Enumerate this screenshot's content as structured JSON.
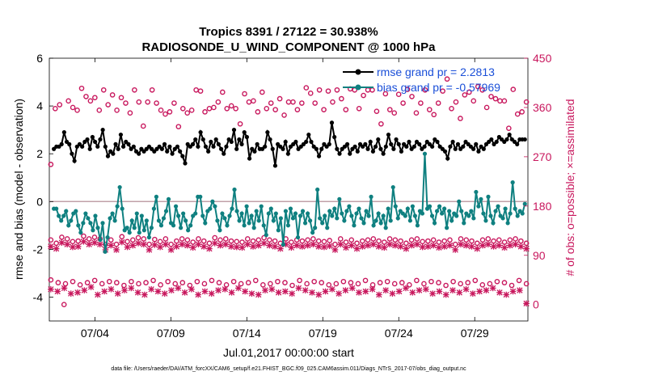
{
  "chart_data": {
    "type": "line",
    "title_line1": "Tropics 8391 / 27122 = 30.938%",
    "title_line2": "RADIOSONDE_U_WIND_COMPONENT @ 1000 hPa",
    "xlabel": "Jul.01,2017 00:00:00 start",
    "ylabel_left": "rmse and bias (model - observation)",
    "ylabel_right": "# of obs: o=possible; ×=assimilated",
    "x_ticks": [
      "07/04",
      "07/09",
      "07/14",
      "07/19",
      "07/24",
      "07/29"
    ],
    "x_tick_days": [
      3,
      8,
      13,
      18,
      23,
      28
    ],
    "x_range_days": [
      0,
      31.5
    ],
    "y_left_ticks": [
      "-4",
      "-2",
      "0",
      "2",
      "4",
      "6"
    ],
    "y_left_range": [
      -5,
      6
    ],
    "y_right_ticks": [
      "0",
      "90",
      "180",
      "270",
      "360",
      "450"
    ],
    "y_right_range": [
      -30,
      450
    ],
    "zero_line": 0,
    "footnote": "data file: /Users/raeder/DAI/ATM_forcXX/CAM6_setup/f.e21.FHIST_BGC.f09_025.CAM6assim.011/Diags_NTrS_2017-07/obs_diag_output.nc",
    "colors": {
      "rmse": "#000000",
      "bias": "#0f8080",
      "obs": "#c8175d",
      "zero": "#c0a0a8",
      "legend_text": "#1a4fd8"
    },
    "legend": [
      {
        "name": "rmse grand pr = 2.2813",
        "series": "rmse"
      },
      {
        "name": "bias grand pr = -0.57969",
        "series": "bias"
      }
    ],
    "series": [
      {
        "name": "rmse",
        "axis": "left",
        "values": [
          2.2,
          2.3,
          2.3,
          2.4,
          2.9,
          2.5,
          2.4,
          2.0,
          1.7,
          2.3,
          2.4,
          2.3,
          2.5,
          2.6,
          2.2,
          2.7,
          2.5,
          2.3,
          2.6,
          3.0,
          2.3,
          1.9,
          2.1,
          2.0,
          2.4,
          2.2,
          2.8,
          2.3,
          2.5,
          2.4,
          2.2,
          2.3,
          2.1,
          2.0,
          2.2,
          2.1,
          2.2,
          2.3,
          2.2,
          2.1,
          2.2,
          2.3,
          2.2,
          2.4,
          2.1,
          2.3,
          2.0,
          2.2,
          2.3,
          2.1,
          1.9,
          1.6,
          2.4,
          2.3,
          2.4,
          2.6,
          2.3,
          2.9,
          2.6,
          2.3,
          2.1,
          2.5,
          2.3,
          2.6,
          2.4,
          2.2,
          2.0,
          2.3,
          2.6,
          2.5,
          3.0,
          2.2,
          2.6,
          2.4,
          2.9,
          2.7,
          1.8,
          2.2,
          2.1,
          2.4,
          2.2,
          2.2,
          2.3,
          2.9,
          2.6,
          2.2,
          1.5,
          2.4,
          2.3,
          2.2,
          2.5,
          2.0,
          2.3,
          2.4,
          2.5,
          2.2,
          2.3,
          2.4,
          2.5,
          2.8,
          2.5,
          2.3,
          2.2,
          1.9,
          2.2,
          2.4,
          2.3,
          2.4,
          3.3,
          2.7,
          2.2,
          2.0,
          2.2,
          2.3,
          2.4,
          2.0,
          2.2,
          2.3,
          2.1,
          2.4,
          2.3,
          2.4,
          2.2,
          2.5,
          2.1,
          2.3,
          2.6,
          2.2,
          2.0,
          2.3,
          2.8,
          2.4,
          2.2,
          2.6,
          2.4,
          2.1,
          2.4,
          2.3,
          2.5,
          2.2,
          2.3,
          2.5,
          2.4,
          2.2,
          2.3,
          2.5,
          2.4,
          2.3,
          2.6,
          2.5,
          2.3,
          2.2,
          2.1,
          1.8,
          2.3,
          2.5,
          2.2,
          2.4,
          2.2,
          2.3,
          2.5,
          2.4,
          2.3,
          2.2,
          2.4,
          2.1,
          2.3,
          2.2,
          2.4,
          2.5,
          2.6,
          2.4,
          2.5,
          2.7,
          2.6,
          2.5,
          2.6,
          2.8,
          2.6,
          2.5,
          2.4,
          2.6,
          2.6,
          2.6
        ]
      },
      {
        "name": "bias",
        "axis": "left",
        "values": [
          -0.3,
          -0.3,
          -0.6,
          -0.8,
          -0.6,
          -0.4,
          -1.0,
          -0.8,
          -0.5,
          -0.4,
          -1.0,
          -1.3,
          -0.9,
          -0.5,
          -0.7,
          -0.9,
          -1.2,
          -0.6,
          -1.1,
          -1.6,
          -0.9,
          -2.1,
          -1.5,
          -0.7,
          -0.5,
          -0.8,
          -0.2,
          0.6,
          -0.3,
          -1.2,
          -1.1,
          -1.3,
          -0.8,
          -1.1,
          -0.5,
          -1.3,
          -0.6,
          -1.2,
          -0.8,
          -1.5,
          -1.1,
          -0.3,
          0.2,
          -0.8,
          -1.0,
          -0.7,
          -0.4,
          0.1,
          -0.9,
          -1.0,
          -0.2,
          -0.6,
          -1.1,
          -0.5,
          -0.8,
          -1.2,
          -1.0,
          -0.6,
          -0.5,
          0.2,
          0.2,
          -0.6,
          -0.9,
          -0.4,
          -0.3,
          0.0,
          -0.2,
          -0.8,
          -1.2,
          -0.5,
          -0.7,
          -1.0,
          -0.6,
          -0.3,
          0.5,
          -0.4,
          -0.8,
          -0.5,
          -1.0,
          -0.2,
          -0.9,
          -0.6,
          -1.1,
          -0.4,
          -0.8,
          -0.2,
          -1.0,
          -1.4,
          -0.5,
          -0.3,
          -0.8,
          -0.5,
          -1.2,
          -0.7,
          -1.8,
          -0.4,
          -1.0,
          -0.3,
          -0.7,
          -0.5,
          -1.5,
          -0.6,
          -0.4,
          -0.9,
          -0.5,
          -0.8,
          -1.3,
          -1.1,
          0.5,
          -0.7,
          -0.9,
          -0.6,
          -1.1,
          -0.4,
          -0.6,
          -0.3,
          -0.7,
          0.1,
          -0.5,
          -0.8,
          -0.4,
          -0.2,
          -0.6,
          -1.0,
          -0.5,
          -0.3,
          -0.7,
          -0.9,
          -0.4,
          -0.6,
          0.2,
          -1.0,
          -0.8,
          -0.5,
          -0.9,
          -0.6,
          -1.1,
          -0.3,
          -0.8,
          0.6,
          -0.2,
          -0.7,
          -0.4,
          -0.5,
          -0.6,
          -0.3,
          -0.8,
          -0.2,
          -0.6,
          -1.0,
          -0.4,
          -0.5,
          2.0,
          -0.3,
          -0.2,
          -0.6,
          -0.9,
          -0.4,
          -0.2,
          -0.5,
          -0.3,
          -1.1,
          -0.4,
          -0.8,
          -0.5,
          -0.6,
          0.0,
          -0.4,
          -0.9,
          -0.5,
          -0.6,
          -0.4,
          -0.7,
          0.4,
          -0.2,
          0.1,
          -0.5,
          -0.8,
          0.2,
          -0.6,
          -0.9,
          -0.4,
          -0.2,
          -0.6,
          -0.7,
          -0.3,
          -0.9,
          -0.5,
          0.8,
          -0.3,
          -0.6,
          -0.4,
          -0.5,
          -0.1
        ]
      },
      {
        "name": "obs possible (upper)",
        "axis": "right",
        "marker": "o",
        "values": [
          256,
          358,
          365,
          0,
          372,
          360,
          355,
          395,
          380,
          372,
          378,
          355,
          392,
          365,
          383,
          355,
          378,
          368,
          350,
          392,
          370,
          326,
          370,
          392,
          368,
          355,
          348,
          352,
          368,
          325,
          358,
          350,
          355,
          392,
          390,
          352,
          358,
          360,
          370,
          388,
          358,
          363,
          358,
          330,
          385,
          370,
          372,
          352,
          388,
          358,
          368,
          356,
          376,
          346,
          370,
          370,
          356,
          368,
          396,
          386,
          368,
          392,
          356,
          390,
          370,
          392,
          376,
          356,
          394,
          392,
          358,
          382,
          392,
          392,
          353,
          330,
          385,
          356,
          350,
          384,
          368,
          393,
          380,
          350,
          368,
          392,
          356,
          347,
          368,
          390,
          412,
          358,
          370,
          340,
          383,
          388,
          372,
          398,
          392,
          360,
          380,
          376,
          372,
          372,
          322,
          393,
          348,
          352,
          370
        ]
      },
      {
        "name": "obs possible (middle)",
        "axis": "right",
        "marker": "o",
        "values": [
          118,
          112,
          123,
          120,
          115,
          116,
          125,
          120,
          123,
          120,
          110,
          118,
          110,
          124,
          115,
          118,
          122,
          120,
          110,
          119,
          115,
          120,
          110,
          116,
          120,
          118,
          114,
          120,
          116,
          112,
          122,
          118,
          120,
          116,
          115,
          114,
          120,
          116,
          118,
          122,
          118,
          116,
          112,
          120,
          114,
          118,
          116,
          118,
          120,
          116,
          115,
          117,
          110,
          120,
          114,
          118,
          112,
          116,
          118,
          120,
          116,
          114,
          120,
          118,
          116,
          112,
          118,
          120,
          115,
          116,
          118,
          114,
          116,
          118,
          110,
          120,
          118,
          116,
          112,
          118,
          120,
          116,
          118,
          114,
          118,
          120,
          116,
          112
        ]
      },
      {
        "name": "obs assimilated (middle)",
        "axis": "right",
        "marker": "x",
        "values": [
          106,
          102,
          113,
          110,
          105,
          106,
          115,
          110,
          113,
          110,
          100,
          108,
          100,
          114,
          105,
          108,
          112,
          110,
          100,
          109,
          105,
          110,
          100,
          106,
          110,
          108,
          104,
          110,
          106,
          102,
          112,
          108,
          110,
          106,
          105,
          104,
          110,
          106,
          108,
          112,
          108,
          106,
          102,
          110,
          104,
          108,
          106,
          108,
          110,
          106,
          105,
          107,
          100,
          110,
          104,
          108,
          102,
          106,
          108,
          110,
          106,
          104,
          110,
          108,
          106,
          102,
          108,
          110,
          105,
          106,
          108,
          104,
          106,
          108,
          100,
          110,
          108,
          106,
          102,
          108,
          110,
          106,
          108,
          104,
          108,
          110,
          106,
          102
        ]
      },
      {
        "name": "obs possible (lower)",
        "axis": "right",
        "marker": "o",
        "values": [
          45,
          40,
          38,
          42,
          36,
          40,
          44,
          38,
          42,
          40,
          35,
          42,
          38,
          40,
          44,
          36,
          42,
          38,
          40,
          35,
          42,
          38,
          44,
          40,
          36,
          42,
          38,
          40,
          44,
          36,
          38,
          42,
          40,
          35,
          44,
          38,
          42,
          40,
          36,
          38,
          42,
          40,
          38,
          44,
          36,
          40,
          42,
          38,
          40,
          36,
          44,
          38,
          42,
          40,
          35,
          42,
          38,
          40,
          44,
          36,
          38,
          42,
          40,
          35,
          44,
          38
        ]
      },
      {
        "name": "obs assimilated (lower)",
        "axis": "right",
        "marker": "x",
        "values": [
          28,
          24,
          30,
          20,
          22,
          26,
          32,
          18,
          24,
          28,
          20,
          26,
          30,
          22,
          18,
          28,
          24,
          20,
          26,
          30,
          22,
          28,
          18,
          24,
          20,
          26,
          28,
          22,
          30,
          24,
          20,
          18,
          26,
          28,
          22,
          24,
          20,
          30,
          26,
          22,
          18,
          24,
          28,
          20,
          26,
          30,
          22,
          24,
          28,
          18,
          26,
          20,
          24,
          30,
          22,
          26,
          28,
          20,
          24,
          18,
          26,
          22,
          28,
          20,
          24,
          26,
          30,
          22,
          18,
          24,
          26,
          2
        ]
      }
    ]
  }
}
